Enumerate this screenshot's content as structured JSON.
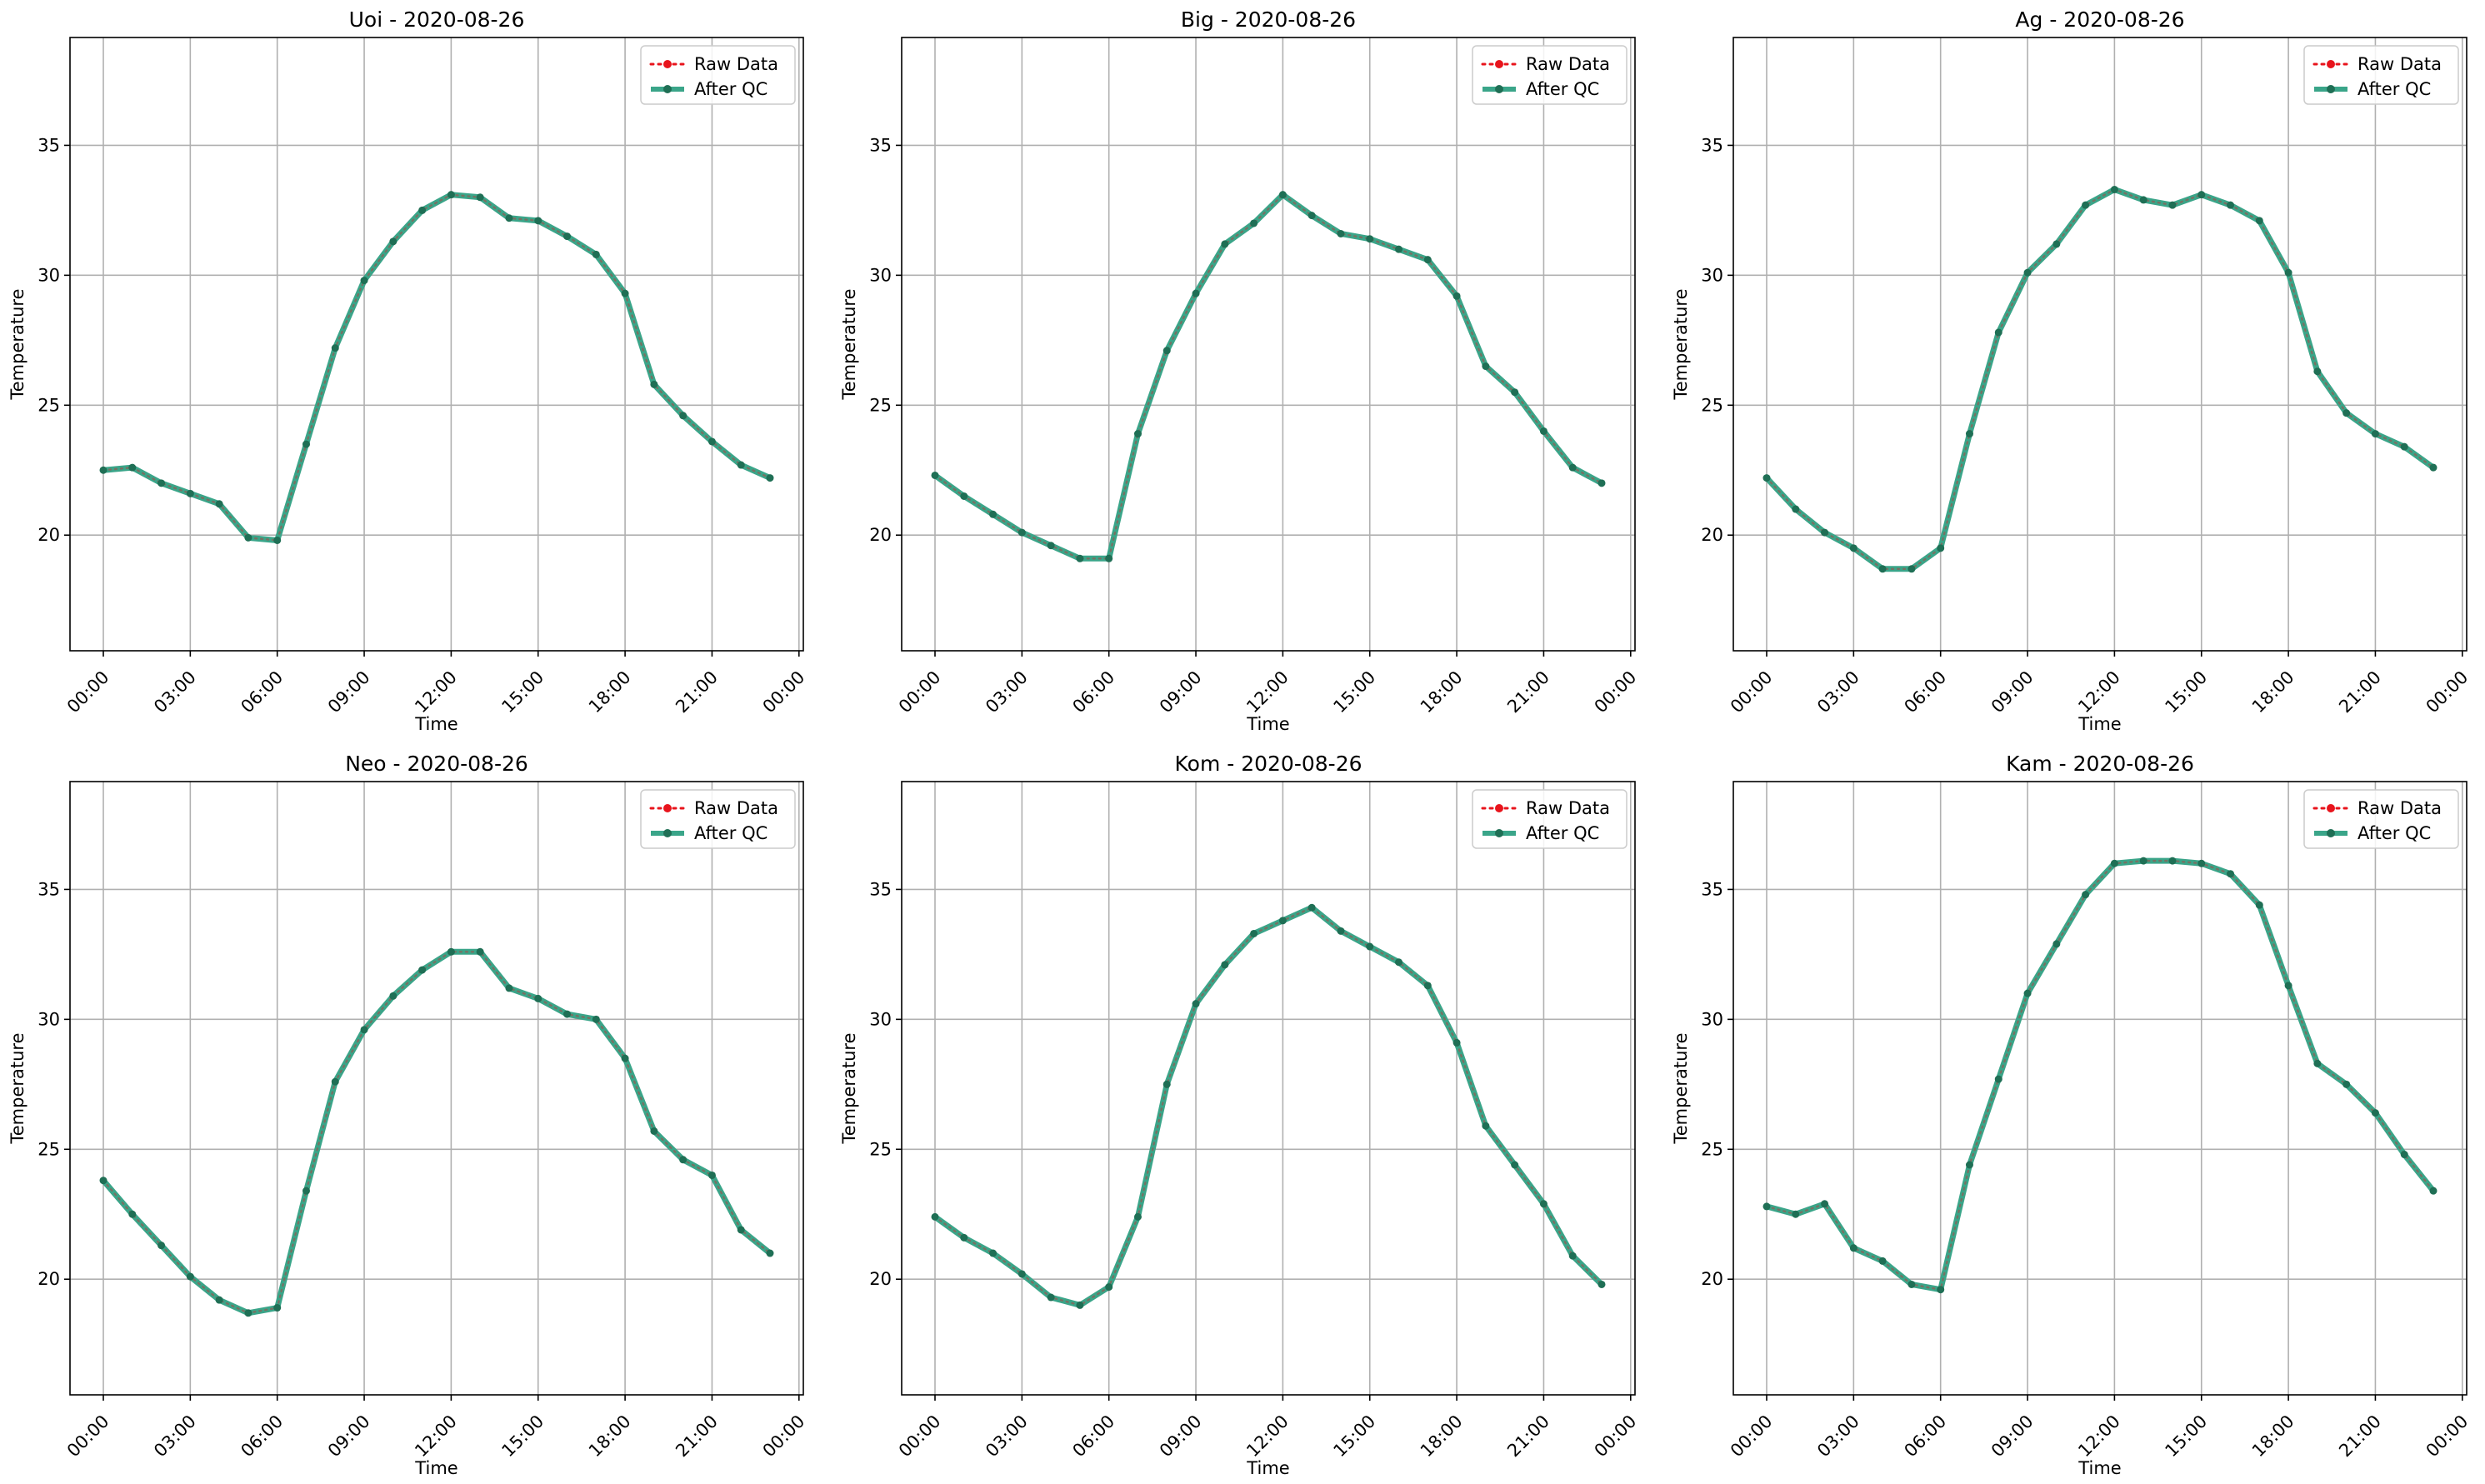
{
  "legend_labels": {
    "raw": "Raw Data",
    "qc": "After QC"
  },
  "colors": {
    "raw": "#e8141c",
    "qc": "#3aa589",
    "qc_marker": "#1f6f55",
    "grid": "#b0b0b0"
  },
  "chart_data": [
    {
      "type": "line",
      "title": "Uoi - 2020-08-26",
      "xlabel": "Time",
      "ylabel": "Temperature",
      "xlim": [
        -1.15,
        24.15
      ],
      "ylim": [
        15.55,
        39.15
      ],
      "x_ticks": [
        "00:00",
        "03:00",
        "06:00",
        "09:00",
        "12:00",
        "15:00",
        "18:00",
        "21:00",
        "00:00"
      ],
      "y_ticks": [
        "20",
        "25",
        "30",
        "35"
      ],
      "x_hours": [
        0,
        1,
        2,
        3,
        4,
        5,
        6,
        7,
        8,
        9,
        10,
        11,
        12,
        13,
        14,
        15,
        16,
        17,
        18,
        19,
        20,
        21,
        22,
        23
      ],
      "grid": true,
      "legend_position": "top-right",
      "series": [
        {
          "name": "Raw Data",
          "values": [
            22.5,
            22.6,
            22.0,
            21.6,
            21.2,
            19.9,
            19.8,
            23.5,
            27.2,
            29.8,
            31.3,
            32.5,
            33.1,
            33.0,
            32.2,
            32.1,
            31.5,
            30.8,
            29.3,
            25.8,
            24.6,
            23.6,
            22.7,
            22.2
          ]
        },
        {
          "name": "After QC",
          "values": [
            22.5,
            22.6,
            22.0,
            21.6,
            21.2,
            19.9,
            19.8,
            23.5,
            27.2,
            29.8,
            31.3,
            32.5,
            33.1,
            33.0,
            32.2,
            32.1,
            31.5,
            30.8,
            29.3,
            25.8,
            24.6,
            23.6,
            22.7,
            22.2
          ]
        }
      ]
    },
    {
      "type": "line",
      "title": "Big - 2020-08-26",
      "xlabel": "Time",
      "ylabel": "Temperature",
      "xlim": [
        -1.15,
        24.15
      ],
      "ylim": [
        15.55,
        39.15
      ],
      "x_ticks": [
        "00:00",
        "03:00",
        "06:00",
        "09:00",
        "12:00",
        "15:00",
        "18:00",
        "21:00",
        "00:00"
      ],
      "y_ticks": [
        "20",
        "25",
        "30",
        "35"
      ],
      "x_hours": [
        0,
        1,
        2,
        3,
        4,
        5,
        6,
        7,
        8,
        9,
        10,
        11,
        12,
        13,
        14,
        15,
        16,
        17,
        18,
        19,
        20,
        21,
        22,
        23
      ],
      "grid": true,
      "legend_position": "top-right",
      "series": [
        {
          "name": "Raw Data",
          "values": [
            22.3,
            21.5,
            20.8,
            20.1,
            19.6,
            19.1,
            19.1,
            23.9,
            27.1,
            29.3,
            31.2,
            32.0,
            33.1,
            32.3,
            31.6,
            31.4,
            31.0,
            30.6,
            29.2,
            26.5,
            25.5,
            24.0,
            22.6,
            22.0
          ]
        },
        {
          "name": "After QC",
          "values": [
            22.3,
            21.5,
            20.8,
            20.1,
            19.6,
            19.1,
            19.1,
            23.9,
            27.1,
            29.3,
            31.2,
            32.0,
            33.1,
            32.3,
            31.6,
            31.4,
            31.0,
            30.6,
            29.2,
            26.5,
            25.5,
            24.0,
            22.6,
            22.0
          ]
        }
      ]
    },
    {
      "type": "line",
      "title": "Ag - 2020-08-26",
      "xlabel": "Time",
      "ylabel": "Temperature",
      "xlim": [
        -1.15,
        24.15
      ],
      "ylim": [
        15.55,
        39.15
      ],
      "x_ticks": [
        "00:00",
        "03:00",
        "06:00",
        "09:00",
        "12:00",
        "15:00",
        "18:00",
        "21:00",
        "00:00"
      ],
      "y_ticks": [
        "20",
        "25",
        "30",
        "35"
      ],
      "x_hours": [
        0,
        1,
        2,
        3,
        4,
        5,
        6,
        7,
        8,
        9,
        10,
        11,
        12,
        13,
        14,
        15,
        16,
        17,
        18,
        19,
        20,
        21,
        22,
        23
      ],
      "grid": true,
      "legend_position": "top-right",
      "series": [
        {
          "name": "Raw Data",
          "values": [
            22.2,
            21.0,
            20.1,
            19.5,
            18.7,
            18.7,
            19.5,
            23.9,
            27.8,
            30.1,
            31.2,
            32.7,
            33.3,
            32.9,
            32.7,
            33.1,
            32.7,
            32.1,
            30.1,
            26.3,
            24.7,
            23.9,
            23.4,
            22.6
          ]
        },
        {
          "name": "After QC",
          "values": [
            22.2,
            21.0,
            20.1,
            19.5,
            18.7,
            18.7,
            19.5,
            23.9,
            27.8,
            30.1,
            31.2,
            32.7,
            33.3,
            32.9,
            32.7,
            33.1,
            32.7,
            32.1,
            30.1,
            26.3,
            24.7,
            23.9,
            23.4,
            22.6
          ]
        }
      ]
    },
    {
      "type": "line",
      "title": "Neo - 2020-08-26",
      "xlabel": "Time",
      "ylabel": "Temperature",
      "xlim": [
        -1.15,
        24.15
      ],
      "ylim": [
        15.55,
        39.15
      ],
      "x_ticks": [
        "00:00",
        "03:00",
        "06:00",
        "09:00",
        "12:00",
        "15:00",
        "18:00",
        "21:00",
        "00:00"
      ],
      "y_ticks": [
        "20",
        "25",
        "30",
        "35"
      ],
      "x_hours": [
        0,
        1,
        2,
        3,
        4,
        5,
        6,
        7,
        8,
        9,
        10,
        11,
        12,
        13,
        14,
        15,
        16,
        17,
        18,
        19,
        20,
        21,
        22,
        23
      ],
      "grid": true,
      "legend_position": "top-right",
      "series": [
        {
          "name": "Raw Data",
          "values": [
            23.8,
            22.5,
            21.3,
            20.1,
            19.2,
            18.7,
            18.9,
            23.4,
            27.6,
            29.6,
            30.9,
            31.9,
            32.6,
            32.6,
            31.2,
            30.8,
            30.2,
            30.0,
            28.5,
            25.7,
            24.6,
            24.0,
            21.9,
            21.0
          ]
        },
        {
          "name": "After QC",
          "values": [
            23.8,
            22.5,
            21.3,
            20.1,
            19.2,
            18.7,
            18.9,
            23.4,
            27.6,
            29.6,
            30.9,
            31.9,
            32.6,
            32.6,
            31.2,
            30.8,
            30.2,
            30.0,
            28.5,
            25.7,
            24.6,
            24.0,
            21.9,
            21.0
          ]
        }
      ]
    },
    {
      "type": "line",
      "title": "Kom - 2020-08-26",
      "xlabel": "Time",
      "ylabel": "Temperature",
      "xlim": [
        -1.15,
        24.15
      ],
      "ylim": [
        15.55,
        39.15
      ],
      "x_ticks": [
        "00:00",
        "03:00",
        "06:00",
        "09:00",
        "12:00",
        "15:00",
        "18:00",
        "21:00",
        "00:00"
      ],
      "y_ticks": [
        "20",
        "25",
        "30",
        "35"
      ],
      "x_hours": [
        0,
        1,
        2,
        3,
        4,
        5,
        6,
        7,
        8,
        9,
        10,
        11,
        12,
        13,
        14,
        15,
        16,
        17,
        18,
        19,
        20,
        21,
        22,
        23
      ],
      "grid": true,
      "legend_position": "top-right",
      "series": [
        {
          "name": "Raw Data",
          "values": [
            22.4,
            21.6,
            21.0,
            20.2,
            19.3,
            19.0,
            19.7,
            22.4,
            27.5,
            30.6,
            32.1,
            33.3,
            33.8,
            34.3,
            33.4,
            32.8,
            32.2,
            31.3,
            29.1,
            25.9,
            24.4,
            22.9,
            20.9,
            19.8
          ]
        },
        {
          "name": "After QC",
          "values": [
            22.4,
            21.6,
            21.0,
            20.2,
            19.3,
            19.0,
            19.7,
            22.4,
            27.5,
            30.6,
            32.1,
            33.3,
            33.8,
            34.3,
            33.4,
            32.8,
            32.2,
            31.3,
            29.1,
            25.9,
            24.4,
            22.9,
            20.9,
            19.8
          ]
        }
      ]
    },
    {
      "type": "line",
      "title": "Kam - 2020-08-26",
      "xlabel": "Time",
      "ylabel": "Temperature",
      "xlim": [
        -1.15,
        24.15
      ],
      "ylim": [
        15.55,
        39.15
      ],
      "x_ticks": [
        "00:00",
        "03:00",
        "06:00",
        "09:00",
        "12:00",
        "15:00",
        "18:00",
        "21:00",
        "00:00"
      ],
      "y_ticks": [
        "20",
        "25",
        "30",
        "35"
      ],
      "x_hours": [
        0,
        1,
        2,
        3,
        4,
        5,
        6,
        7,
        8,
        9,
        10,
        11,
        12,
        13,
        14,
        15,
        16,
        17,
        18,
        19,
        20,
        21,
        22,
        23
      ],
      "grid": true,
      "legend_position": "top-right",
      "series": [
        {
          "name": "Raw Data",
          "values": [
            22.8,
            22.5,
            22.9,
            21.2,
            20.7,
            19.8,
            19.6,
            24.4,
            27.7,
            31.0,
            32.9,
            34.8,
            36.0,
            36.1,
            36.1,
            36.0,
            35.6,
            34.4,
            31.3,
            28.3,
            27.5,
            26.4,
            24.8,
            23.4
          ]
        },
        {
          "name": "After QC",
          "values": [
            22.8,
            22.5,
            22.9,
            21.2,
            20.7,
            19.8,
            19.6,
            24.4,
            27.7,
            31.0,
            32.9,
            34.8,
            36.0,
            36.1,
            36.1,
            36.0,
            35.6,
            34.4,
            31.3,
            28.3,
            27.5,
            26.4,
            24.8,
            23.4
          ]
        }
      ]
    }
  ]
}
